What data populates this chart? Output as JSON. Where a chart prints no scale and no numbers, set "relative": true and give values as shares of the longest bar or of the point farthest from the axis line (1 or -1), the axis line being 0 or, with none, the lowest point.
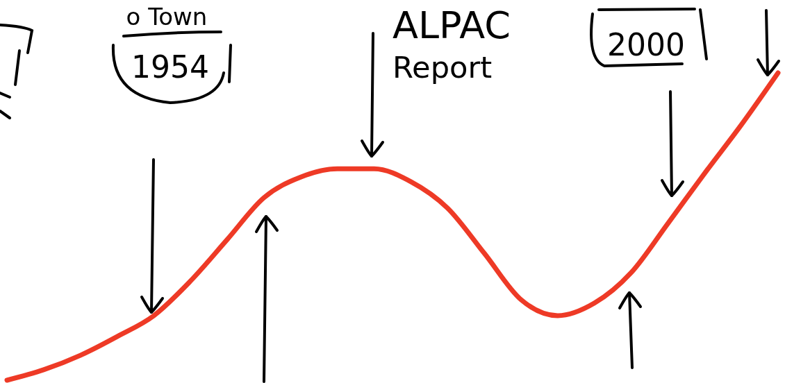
{
  "chart_data": {
    "type": "line",
    "relative": true,
    "categories": [
      null,
      null,
      null,
      null,
      null,
      null,
      null,
      null,
      null,
      null,
      null,
      null,
      null,
      null,
      null,
      null,
      null,
      null,
      null,
      null,
      null,
      null
    ],
    "series": [
      {
        "color": "#ee3a26",
        "values": [
          0,
          0.034,
          0.081,
          0.142,
          0.21,
          0.323,
          0.458,
          0.594,
          0.661,
          0.688,
          0.688,
          0.646,
          0.56,
          0.413,
          0.262,
          0.21,
          0.251,
          0.35,
          0.51,
          0.673,
          0.831,
          1
        ]
      }
    ],
    "annotations": [
      "o Town",
      "1954",
      "ALPAC Report",
      "2000"
    ],
    "marker": "none",
    "line_style": "solid"
  }
}
